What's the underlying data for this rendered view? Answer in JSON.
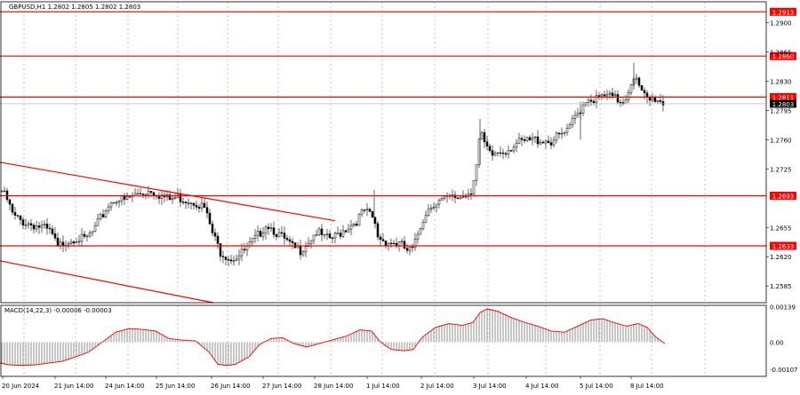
{
  "chart_data": [
    {
      "type": "candlestick",
      "symbol_label": "GBPUSD,H1  1.2802 1.2805 1.2802 1.2803",
      "price_axis_ticks": [
        "1.2900",
        "1.2865",
        "1.2830",
        "1.2795",
        "1.2760",
        "1.2725",
        "1.2655",
        "1.2620",
        "1.2585"
      ],
      "ylim": [
        1.2565,
        1.2925
      ],
      "x_tick_labels": [
        "20 Jun 2024",
        "21 Jun 14:00",
        "24 Jun 14:00",
        "25 Jun 14:00",
        "26 Jun 14:00",
        "27 Jun 14:00",
        "28 Jun 14:00",
        "1 Jul 14:00",
        "2 Jul 14:00",
        "3 Jul 14:00",
        "4 Jul 14:00",
        "5 Jul 14:00",
        "8 Jul 14:00"
      ],
      "levels": [
        {
          "value": 1.2913,
          "label": "1.2913"
        },
        {
          "value": 1.286,
          "label": "1.2860"
        },
        {
          "value": 1.2811,
          "label": "1.2811"
        },
        {
          "value": 1.2693,
          "label": "1.2693"
        },
        {
          "value": 1.2633,
          "label": "1.2633"
        }
      ],
      "current_price": {
        "value": 1.2803,
        "label": "1.2803"
      },
      "trendlines": [
        {
          "x0": 0,
          "y0": 1.2733,
          "x1": 377,
          "y1": 1.2663
        },
        {
          "x0": 0,
          "y0": 1.2615,
          "x1": 240,
          "y1": 1.2565
        }
      ],
      "close_path": [
        [
          0,
          1.2702
        ],
        [
          8,
          1.2688
        ],
        [
          15,
          1.2668
        ],
        [
          25,
          1.2662
        ],
        [
          38,
          1.2658
        ],
        [
          48,
          1.2655
        ],
        [
          58,
          1.2648
        ],
        [
          65,
          1.263
        ],
        [
          72,
          1.2638
        ],
        [
          85,
          1.2643
        ],
        [
          95,
          1.264
        ],
        [
          105,
          1.265
        ],
        [
          113,
          1.2665
        ],
        [
          122,
          1.2682
        ],
        [
          130,
          1.269
        ],
        [
          140,
          1.2687
        ],
        [
          150,
          1.2693
        ],
        [
          160,
          1.2697
        ],
        [
          170,
          1.27
        ],
        [
          180,
          1.2694
        ],
        [
          190,
          1.2688
        ],
        [
          200,
          1.2691
        ],
        [
          210,
          1.2688
        ],
        [
          220,
          1.2686
        ],
        [
          230,
          1.2678
        ],
        [
          240,
          1.2645
        ],
        [
          248,
          1.2626
        ],
        [
          260,
          1.2618
        ],
        [
          270,
          1.2622
        ],
        [
          280,
          1.2632
        ],
        [
          290,
          1.2645
        ],
        [
          300,
          1.266
        ],
        [
          310,
          1.265
        ],
        [
          320,
          1.264
        ],
        [
          330,
          1.263
        ],
        [
          338,
          1.2628
        ],
        [
          348,
          1.264
        ],
        [
          356,
          1.265
        ],
        [
          366,
          1.2641
        ],
        [
          376,
          1.2643
        ],
        [
          390,
          1.2655
        ],
        [
          400,
          1.2662
        ],
        [
          410,
          1.2675
        ],
        [
          420,
          1.2665
        ],
        [
          425,
          1.2645
        ],
        [
          430,
          1.264
        ],
        [
          440,
          1.2637
        ],
        [
          450,
          1.2635
        ],
        [
          458,
          1.2627
        ],
        [
          465,
          1.2628
        ],
        [
          470,
          1.2647
        ],
        [
          478,
          1.2672
        ],
        [
          488,
          1.2685
        ],
        [
          500,
          1.2688
        ],
        [
          510,
          1.269
        ],
        [
          520,
          1.2692
        ],
        [
          530,
          1.27
        ],
        [
          536,
          1.273
        ],
        [
          540,
          1.2768
        ],
        [
          546,
          1.2752
        ],
        [
          552,
          1.274
        ],
        [
          560,
          1.2745
        ],
        [
          570,
          1.2748
        ],
        [
          580,
          1.2755
        ],
        [
          590,
          1.2757
        ],
        [
          600,
          1.276
        ],
        [
          610,
          1.276
        ],
        [
          620,
          1.2758
        ],
        [
          630,
          1.2765
        ],
        [
          640,
          1.277
        ],
        [
          645,
          1.2785
        ],
        [
          652,
          1.2795
        ],
        [
          660,
          1.281
        ],
        [
          670,
          1.2808
        ],
        [
          680,
          1.2812
        ],
        [
          690,
          1.281
        ],
        [
          700,
          1.2805
        ],
        [
          706,
          1.2815
        ],
        [
          712,
          1.2838
        ],
        [
          716,
          1.283
        ],
        [
          722,
          1.2815
        ],
        [
          730,
          1.2806
        ],
        [
          738,
          1.281
        ],
        [
          743,
          1.2806
        ],
        [
          748,
          1.2803
        ]
      ],
      "indicator": {
        "label": "MACD(14,22,3) -0.00006 -0.00003",
        "axis_ticks": [
          "0.00139",
          "0.00",
          "-0.00107"
        ],
        "ylim": [
          -0.00135,
          0.00145
        ],
        "path": [
          [
            0,
            -0.00085
          ],
          [
            10,
            -0.00092
          ],
          [
            25,
            -0.00095
          ],
          [
            40,
            -0.00092
          ],
          [
            55,
            -0.00085
          ],
          [
            70,
            -0.00078
          ],
          [
            85,
            -0.0006
          ],
          [
            100,
            -0.0004
          ],
          [
            115,
            0.0
          ],
          [
            130,
            0.0004
          ],
          [
            145,
            0.00055
          ],
          [
            160,
            0.00052
          ],
          [
            175,
            0.00045
          ],
          [
            190,
            0.00015
          ],
          [
            205,
            8e-05
          ],
          [
            220,
            5e-05
          ],
          [
            235,
            -0.0004
          ],
          [
            245,
            -0.0009
          ],
          [
            255,
            -0.00095
          ],
          [
            265,
            -0.0009
          ],
          [
            280,
            -0.0006
          ],
          [
            292,
            -0.0001
          ],
          [
            305,
            0.00015
          ],
          [
            318,
            0.00018
          ],
          [
            330,
            -5e-05
          ],
          [
            345,
            -0.0002
          ],
          [
            360,
            -5e-05
          ],
          [
            375,
            0.0001
          ],
          [
            390,
            0.00025
          ],
          [
            405,
            0.0005
          ],
          [
            418,
            0.00045
          ],
          [
            428,
            0.0
          ],
          [
            440,
            -0.0003
          ],
          [
            455,
            -0.00035
          ],
          [
            465,
            -0.0003
          ],
          [
            475,
            0.0002
          ],
          [
            490,
            0.0006
          ],
          [
            505,
            0.00075
          ],
          [
            520,
            0.00068
          ],
          [
            532,
            0.0008
          ],
          [
            540,
            0.0012
          ],
          [
            548,
            0.00135
          ],
          [
            560,
            0.00125
          ],
          [
            575,
            0.001
          ],
          [
            590,
            0.0008
          ],
          [
            605,
            0.00065
          ],
          [
            620,
            0.00045
          ],
          [
            635,
            0.0004
          ],
          [
            650,
            0.00065
          ],
          [
            665,
            0.0009
          ],
          [
            678,
            0.00095
          ],
          [
            690,
            0.0008
          ],
          [
            705,
            0.00065
          ],
          [
            718,
            0.00075
          ],
          [
            728,
            0.0006
          ],
          [
            738,
            0.0002
          ],
          [
            748,
            -6e-05
          ]
        ]
      }
    }
  ]
}
